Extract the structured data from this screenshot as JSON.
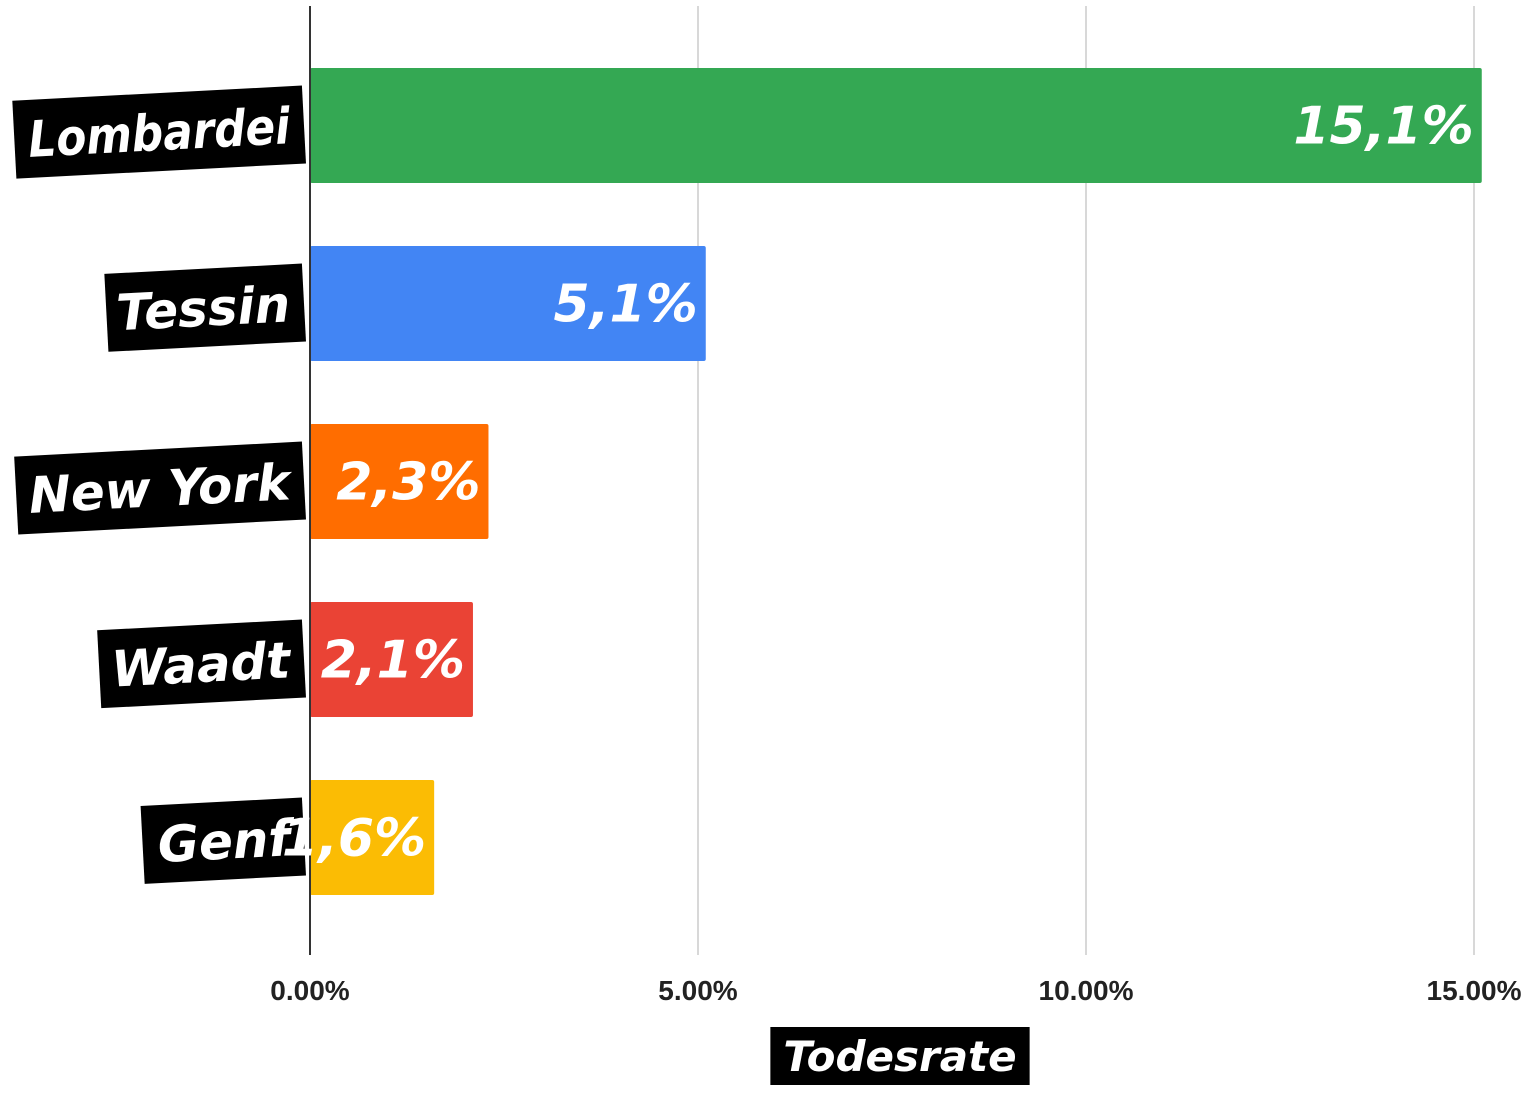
{
  "chart_data": {
    "type": "bar",
    "orientation": "horizontal",
    "categories": [
      "Lombardei",
      "Tessin",
      "New York",
      "Waadt",
      "Genf"
    ],
    "values": [
      15.1,
      5.1,
      2.3,
      2.1,
      1.6
    ],
    "value_labels": [
      "15,1%",
      "5,1%",
      "2,3%",
      "2,1%",
      "1,6%"
    ],
    "colors": [
      "#34a853",
      "#4285f4",
      "#ff6d00",
      "#ea4335",
      "#fbbc04"
    ],
    "xlabel": "Todesrate",
    "xlim": [
      0,
      15
    ],
    "xticks": [
      0,
      5,
      10,
      15
    ],
    "xtick_labels": [
      "0.00%",
      "5.00%",
      "10.00%",
      "15.00%"
    ],
    "grid": "vertical",
    "legend": "none"
  }
}
